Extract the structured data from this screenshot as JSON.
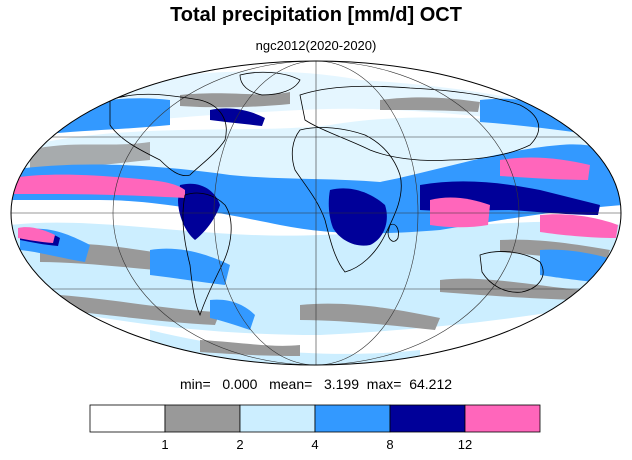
{
  "title": "Total precipitation [mm/d] OCT",
  "subtitle": "ngc2012(2020-2020)",
  "stats": {
    "min_label": "min=",
    "min_value": "0.000",
    "mean_label": "mean=",
    "mean_value": "3.199",
    "max_label": "max=",
    "max_value": "64.212"
  },
  "legend": {
    "colors": [
      "#ffffff",
      "#999999",
      "#cceeff",
      "#3399ff",
      "#000099",
      "#ff66bb"
    ],
    "ticks": [
      "1",
      "2",
      "4",
      "8",
      "12"
    ]
  },
  "map": {
    "projection": "mollweide",
    "ocean_color": "#ffffff",
    "land_outline_color": "#000000"
  }
}
